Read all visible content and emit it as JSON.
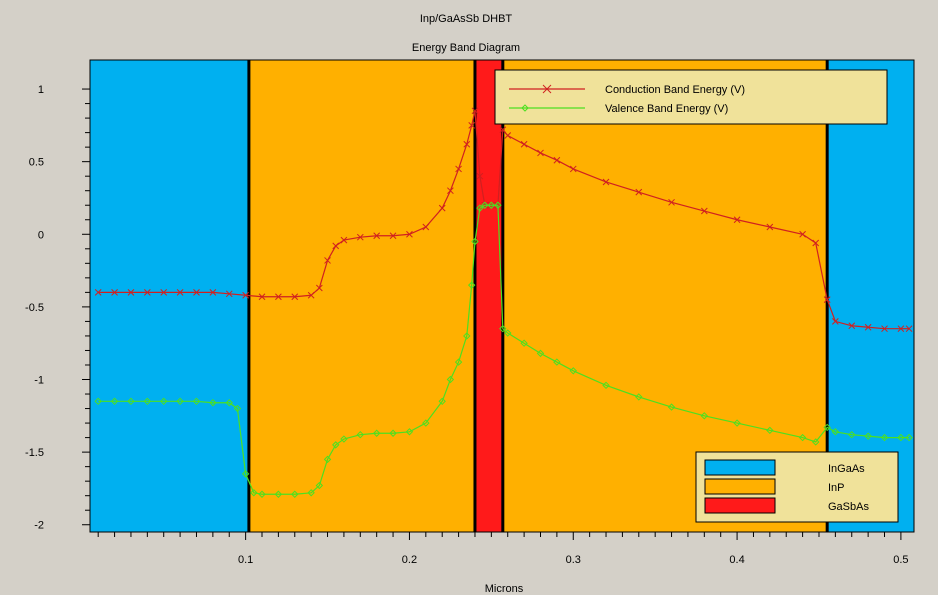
{
  "colors": {
    "page_background": "#d4d0c8",
    "InGaAs": "#00b0f0",
    "InP": "#ffb000",
    "GaSbAs": "#ff1a1a",
    "conduction": "#d02020",
    "valence": "#4ce020",
    "legend_background": "#f0e29a"
  },
  "chart_data": {
    "type": "line",
    "title": "Inp/GaAsSb DHBT",
    "subtitle": "Energy Band Diagram",
    "xlabel": "Microns",
    "ylabel": "",
    "xlim": [
      0.005,
      0.508
    ],
    "ylim": [
      -2.05,
      1.2
    ],
    "x_ticks": [
      0.1,
      0.2,
      0.3,
      0.4,
      0.5
    ],
    "y_ticks": [
      1,
      0.5,
      0,
      -0.5,
      -1,
      -1.5,
      -2
    ],
    "x_tick_labels": [
      "0.1",
      "0.2",
      "0.3",
      "0.4",
      "0.5"
    ],
    "y_tick_labels": [
      "1",
      "0.5",
      "0",
      "-0.5",
      "-1",
      "-1.5",
      "-2"
    ],
    "regions": [
      {
        "material": "InGaAs",
        "x0": 0.005,
        "x1": 0.102
      },
      {
        "material": "InP",
        "x0": 0.102,
        "x1": 0.24
      },
      {
        "material": "GaSbAs",
        "x0": 0.24,
        "x1": 0.257
      },
      {
        "material": "InP",
        "x0": 0.257,
        "x1": 0.455
      },
      {
        "material": "InGaAs",
        "x0": 0.455,
        "x1": 0.508
      }
    ],
    "boundaries": [
      0.102,
      0.24,
      0.257,
      0.455
    ],
    "series": [
      {
        "name": "Conduction Band Energy (V)",
        "x": [
          0.01,
          0.02,
          0.03,
          0.04,
          0.05,
          0.06,
          0.07,
          0.08,
          0.09,
          0.1,
          0.11,
          0.12,
          0.13,
          0.14,
          0.145,
          0.15,
          0.155,
          0.16,
          0.17,
          0.18,
          0.19,
          0.2,
          0.21,
          0.22,
          0.225,
          0.23,
          0.235,
          0.238,
          0.24,
          0.243,
          0.246,
          0.25,
          0.254,
          0.257,
          0.26,
          0.27,
          0.28,
          0.29,
          0.3,
          0.32,
          0.34,
          0.36,
          0.38,
          0.4,
          0.42,
          0.44,
          0.448,
          0.455,
          0.46,
          0.47,
          0.48,
          0.49,
          0.5,
          0.505
        ],
        "y": [
          -0.4,
          -0.4,
          -0.4,
          -0.4,
          -0.4,
          -0.4,
          -0.4,
          -0.4,
          -0.41,
          -0.42,
          -0.43,
          -0.43,
          -0.43,
          -0.42,
          -0.37,
          -0.18,
          -0.08,
          -0.04,
          -0.02,
          -0.01,
          -0.01,
          0.0,
          0.05,
          0.18,
          0.3,
          0.45,
          0.62,
          0.75,
          0.85,
          0.4,
          0.2,
          0.2,
          0.2,
          0.72,
          0.68,
          0.62,
          0.56,
          0.51,
          0.45,
          0.36,
          0.29,
          0.22,
          0.16,
          0.1,
          0.05,
          0.0,
          -0.06,
          -0.45,
          -0.6,
          -0.63,
          -0.64,
          -0.65,
          -0.65,
          -0.65
        ]
      },
      {
        "name": "Valence Band Energy (V)",
        "x": [
          0.01,
          0.02,
          0.03,
          0.04,
          0.05,
          0.06,
          0.07,
          0.08,
          0.09,
          0.095,
          0.1,
          0.105,
          0.11,
          0.12,
          0.13,
          0.14,
          0.145,
          0.15,
          0.155,
          0.16,
          0.17,
          0.18,
          0.19,
          0.2,
          0.21,
          0.22,
          0.225,
          0.23,
          0.235,
          0.238,
          0.24,
          0.243,
          0.246,
          0.25,
          0.254,
          0.257,
          0.26,
          0.27,
          0.28,
          0.29,
          0.3,
          0.32,
          0.34,
          0.36,
          0.38,
          0.4,
          0.42,
          0.44,
          0.448,
          0.455,
          0.46,
          0.47,
          0.48,
          0.49,
          0.5,
          0.505
        ],
        "y": [
          -1.15,
          -1.15,
          -1.15,
          -1.15,
          -1.15,
          -1.15,
          -1.15,
          -1.16,
          -1.16,
          -1.2,
          -1.65,
          -1.78,
          -1.79,
          -1.79,
          -1.79,
          -1.78,
          -1.73,
          -1.55,
          -1.45,
          -1.41,
          -1.38,
          -1.37,
          -1.37,
          -1.36,
          -1.3,
          -1.15,
          -1.0,
          -0.88,
          -0.7,
          -0.35,
          -0.05,
          0.18,
          0.2,
          0.2,
          0.2,
          -0.65,
          -0.68,
          -0.75,
          -0.82,
          -0.88,
          -0.94,
          -1.04,
          -1.12,
          -1.19,
          -1.25,
          -1.3,
          -1.35,
          -1.4,
          -1.43,
          -1.33,
          -1.36,
          -1.38,
          -1.39,
          -1.4,
          -1.4,
          -1.4
        ]
      }
    ],
    "legend_series": {
      "placement": "top-right",
      "entries": [
        "Conduction Band Energy (V)",
        "Valence Band Energy (V)"
      ]
    },
    "legend_regions": {
      "placement": "bottom-right",
      "entries": [
        "InGaAs",
        "InP",
        "GaSbAs"
      ]
    }
  }
}
